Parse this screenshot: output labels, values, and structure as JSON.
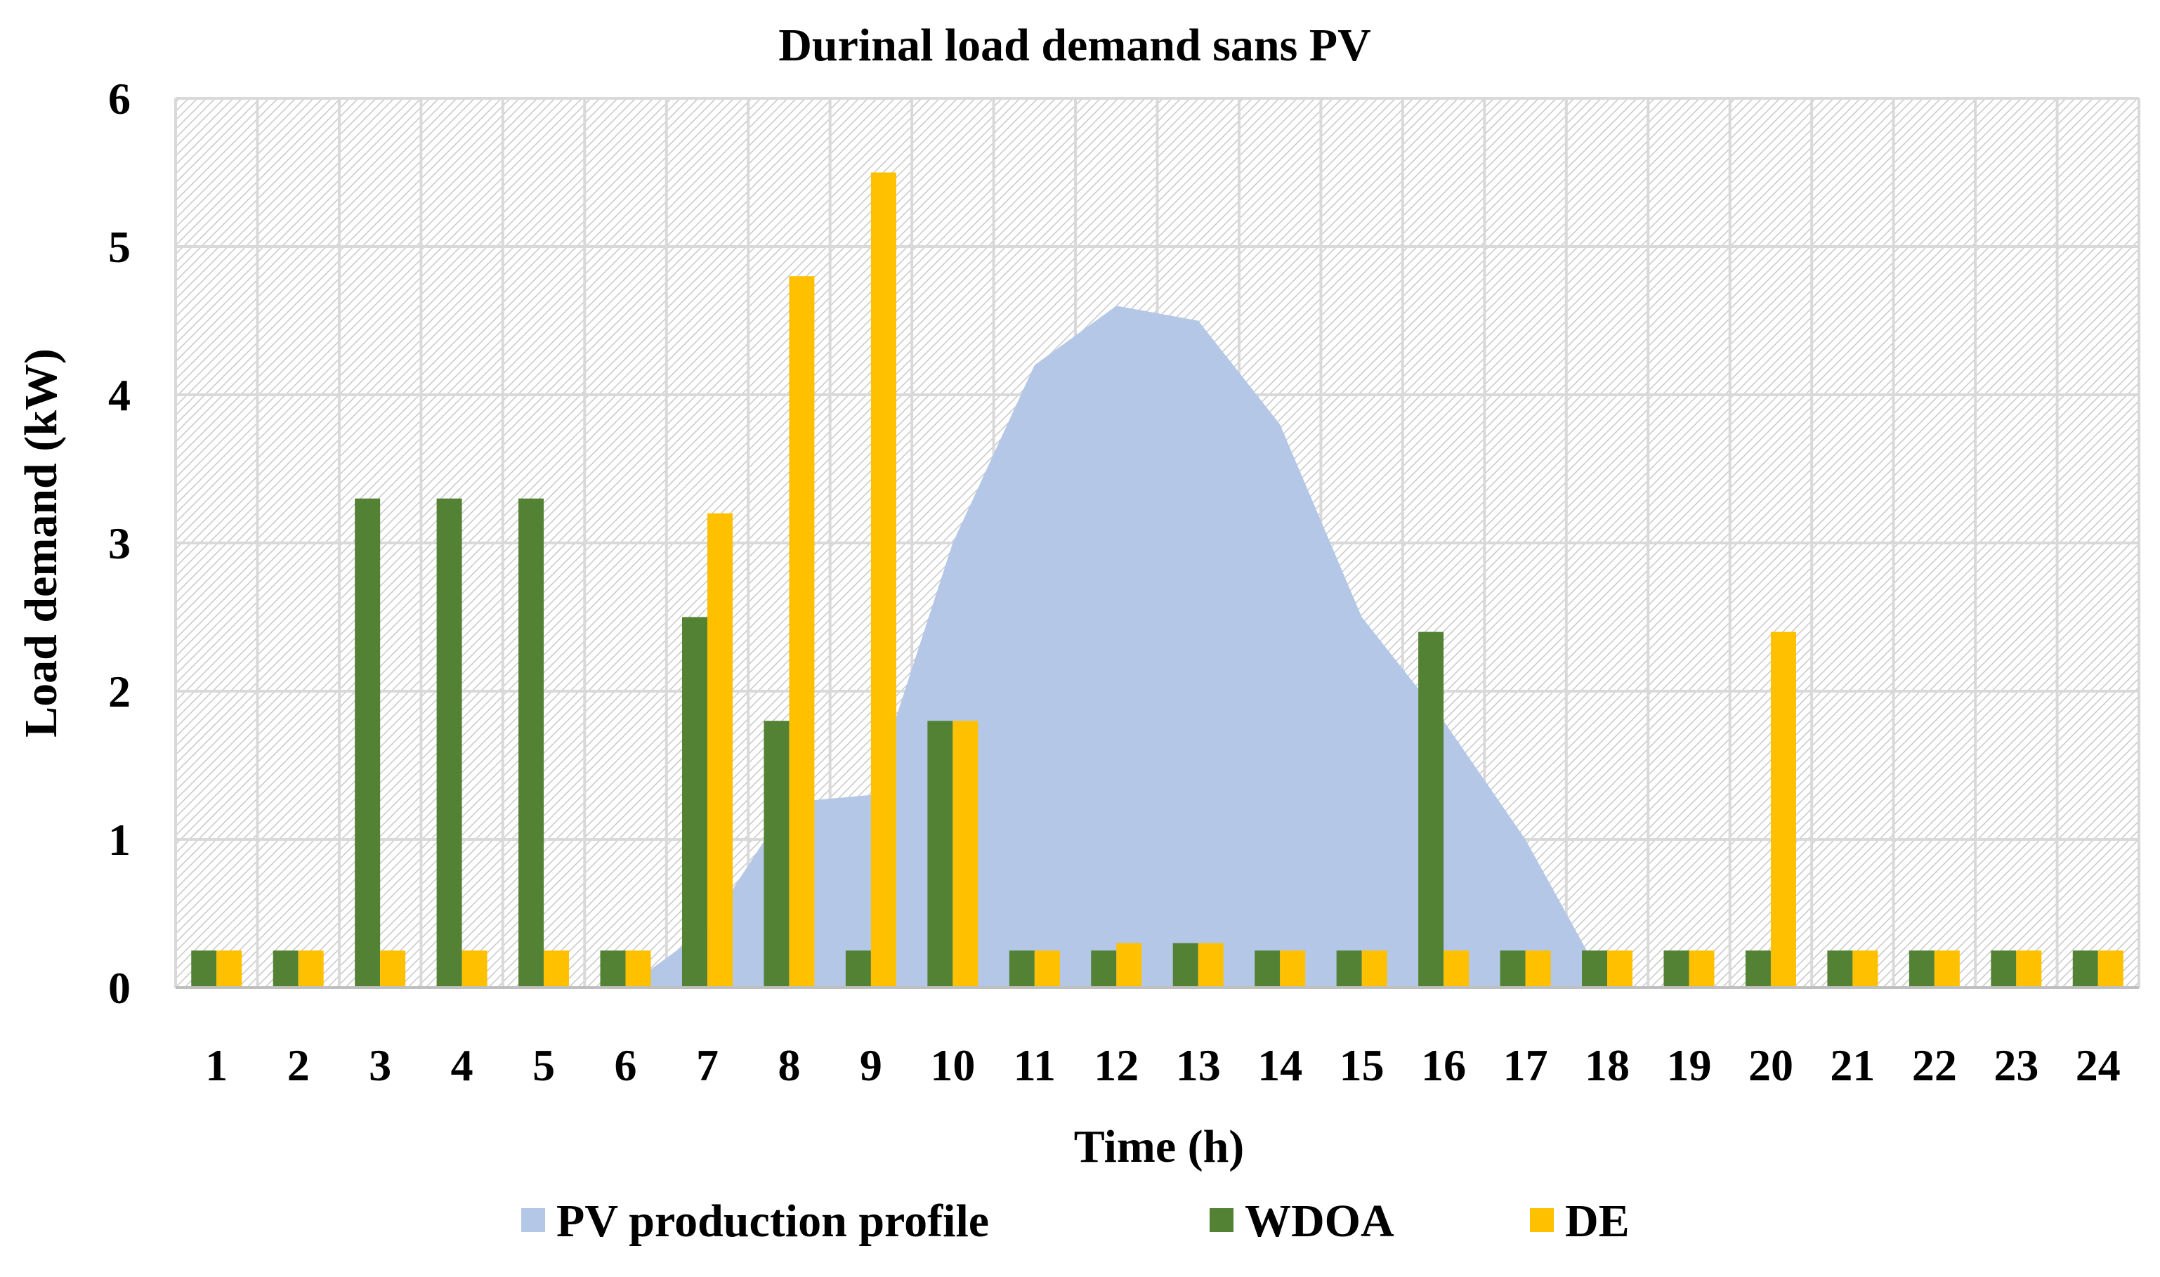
{
  "chart_data": {
    "type": "bar",
    "title": "Durinal load demand sans PV",
    "xlabel": "Time (h)",
    "ylabel": "Load demand (kW)",
    "ylim": [
      0,
      6
    ],
    "yticks": [
      "0",
      "1",
      "2",
      "3",
      "4",
      "5",
      "6"
    ],
    "categories": [
      "1",
      "2",
      "3",
      "4",
      "5",
      "6",
      "7",
      "8",
      "9",
      "10",
      "11",
      "12",
      "13",
      "14",
      "15",
      "16",
      "17",
      "18",
      "19",
      "20",
      "21",
      "22",
      "23",
      "24"
    ],
    "grid": true,
    "legend_position": "bottom",
    "series": [
      {
        "name": "PV production profile",
        "kind": "area",
        "color": "#b4c7e7",
        "values": [
          0,
          0,
          0,
          0,
          0,
          0,
          0.4,
          1.25,
          1.3,
          3.0,
          4.2,
          4.6,
          4.5,
          3.8,
          2.5,
          1.8,
          1.0,
          0,
          0,
          0,
          0,
          0,
          0,
          0
        ]
      },
      {
        "name": "WDOA",
        "kind": "bar",
        "color": "#548235",
        "values": [
          0.25,
          0.25,
          3.3,
          3.3,
          3.3,
          0.25,
          2.5,
          1.8,
          0.25,
          1.8,
          0.25,
          0.25,
          0.3,
          0.25,
          0.25,
          2.4,
          0.25,
          0.25,
          0.25,
          0.25,
          0.25,
          0.25,
          0.25,
          0.25
        ]
      },
      {
        "name": "DE",
        "kind": "bar",
        "color": "#ffc000",
        "values": [
          0.25,
          0.25,
          0.25,
          0.25,
          0.25,
          0.25,
          3.2,
          4.8,
          5.5,
          1.8,
          0.25,
          0.3,
          0.3,
          0.25,
          0.25,
          0.25,
          0.25,
          0.25,
          0.25,
          2.4,
          0.25,
          0.25,
          0.25,
          0.25
        ]
      }
    ]
  }
}
